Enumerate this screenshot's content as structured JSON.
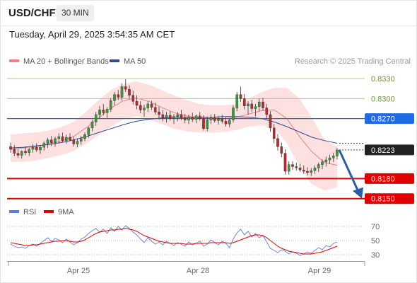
{
  "header": {
    "symbol": "USD/CHF",
    "timeframe": "30 MIN",
    "timestamp": "Tuesday, April 29, 2025 3:54:35 AM CET"
  },
  "legend": {
    "ma20_label": "MA 20 + Bollinger Bands",
    "ma20_color": "#f08080",
    "ma50_label": "MA 50",
    "ma50_color": "#2c4c8c",
    "credit": "Research © 2025 Trading Central"
  },
  "rsi_legend": {
    "rsi_label": "RSI",
    "rsi_color": "#5a7fd8",
    "ma9_label": "9MA",
    "ma9_color": "#e00000"
  },
  "colors": {
    "bull": "#3a9a3a",
    "bear": "#c0272d",
    "resistance": "#a8cc80",
    "pivot": "#1e6be6",
    "support": "#e00000",
    "current": "#222222",
    "arrow": "#2a5ca8",
    "band_fill": "#fde0e0"
  },
  "chart_data": [
    {
      "type": "candlestick",
      "title": "USD/CHF",
      "timeframe": "30 MIN",
      "x_ticks": [
        "Apr 25",
        "Apr 28",
        "Apr 29"
      ],
      "ylim": [
        0.8138,
        0.8345
      ],
      "candles": [
        [
          0.8228,
          0.8234,
          0.8219,
          0.8224
        ],
        [
          0.8224,
          0.823,
          0.8214,
          0.8218
        ],
        [
          0.8218,
          0.8224,
          0.8211,
          0.8215
        ],
        [
          0.8215,
          0.8222,
          0.821,
          0.8221
        ],
        [
          0.8221,
          0.8228,
          0.8215,
          0.8219
        ],
        [
          0.8219,
          0.8226,
          0.8214,
          0.8224
        ],
        [
          0.8224,
          0.8232,
          0.8219,
          0.8227
        ],
        [
          0.8227,
          0.8233,
          0.822,
          0.8223
        ],
        [
          0.8223,
          0.823,
          0.8217,
          0.8227
        ],
        [
          0.8227,
          0.8236,
          0.8222,
          0.8233
        ],
        [
          0.8233,
          0.8241,
          0.8226,
          0.8238
        ],
        [
          0.8238,
          0.8244,
          0.8229,
          0.8234
        ],
        [
          0.8234,
          0.8243,
          0.8228,
          0.824
        ],
        [
          0.824,
          0.8248,
          0.8233,
          0.8243
        ],
        [
          0.8243,
          0.8249,
          0.8234,
          0.8237
        ],
        [
          0.8237,
          0.8246,
          0.8232,
          0.8242
        ],
        [
          0.8242,
          0.8248,
          0.8236,
          0.8238
        ],
        [
          0.8238,
          0.8243,
          0.8228,
          0.8232
        ],
        [
          0.8232,
          0.824,
          0.8227,
          0.8236
        ],
        [
          0.8236,
          0.8244,
          0.8231,
          0.824
        ],
        [
          0.824,
          0.8249,
          0.8236,
          0.8246
        ],
        [
          0.8246,
          0.8258,
          0.8241,
          0.8256
        ],
        [
          0.8256,
          0.8268,
          0.8251,
          0.8265
        ],
        [
          0.8265,
          0.828,
          0.8259,
          0.8276
        ],
        [
          0.8276,
          0.8289,
          0.827,
          0.8283
        ],
        [
          0.8283,
          0.8292,
          0.8275,
          0.8279
        ],
        [
          0.8279,
          0.8287,
          0.8271,
          0.8284
        ],
        [
          0.8284,
          0.8301,
          0.828,
          0.8297
        ],
        [
          0.8297,
          0.831,
          0.829,
          0.8306
        ],
        [
          0.8306,
          0.8313,
          0.8298,
          0.8302
        ],
        [
          0.8302,
          0.8323,
          0.8297,
          0.8318
        ],
        [
          0.8318,
          0.8329,
          0.831,
          0.8314
        ],
        [
          0.8314,
          0.832,
          0.83,
          0.8305
        ],
        [
          0.8305,
          0.8312,
          0.8291,
          0.8296
        ],
        [
          0.8296,
          0.8305,
          0.8284,
          0.829
        ],
        [
          0.829,
          0.8296,
          0.8278,
          0.8283
        ],
        [
          0.8283,
          0.8291,
          0.8273,
          0.8286
        ],
        [
          0.8286,
          0.8296,
          0.828,
          0.8292
        ],
        [
          0.8292,
          0.8297,
          0.8283,
          0.8287
        ],
        [
          0.8287,
          0.8294,
          0.8276,
          0.828
        ],
        [
          0.828,
          0.8288,
          0.8269,
          0.8276
        ],
        [
          0.8276,
          0.8283,
          0.8266,
          0.8271
        ],
        [
          0.8271,
          0.828,
          0.8264,
          0.8275
        ],
        [
          0.8275,
          0.8281,
          0.8267,
          0.827
        ],
        [
          0.827,
          0.8277,
          0.8262,
          0.8273
        ],
        [
          0.8273,
          0.828,
          0.8266,
          0.8276
        ],
        [
          0.8276,
          0.8283,
          0.8268,
          0.8271
        ],
        [
          0.8271,
          0.8277,
          0.8263,
          0.8268
        ],
        [
          0.8268,
          0.8276,
          0.8262,
          0.8272
        ],
        [
          0.8272,
          0.8279,
          0.8265,
          0.8269
        ],
        [
          0.8269,
          0.8276,
          0.8263,
          0.8274
        ],
        [
          0.8274,
          0.828,
          0.8267,
          0.827
        ],
        [
          0.827,
          0.8275,
          0.8252,
          0.8255
        ],
        [
          0.8255,
          0.8273,
          0.8251,
          0.8268
        ],
        [
          0.8268,
          0.8276,
          0.8262,
          0.8271
        ],
        [
          0.8271,
          0.8277,
          0.8264,
          0.8267
        ],
        [
          0.8267,
          0.8274,
          0.8261,
          0.827
        ],
        [
          0.827,
          0.8276,
          0.8263,
          0.8266
        ],
        [
          0.8266,
          0.8272,
          0.8258,
          0.8262
        ],
        [
          0.8262,
          0.827,
          0.8257,
          0.8268
        ],
        [
          0.8268,
          0.829,
          0.8264,
          0.8286
        ],
        [
          0.8286,
          0.831,
          0.8281,
          0.8306
        ],
        [
          0.8306,
          0.8318,
          0.8295,
          0.83
        ],
        [
          0.83,
          0.8307,
          0.8284,
          0.8289
        ],
        [
          0.8289,
          0.8296,
          0.8276,
          0.8292
        ],
        [
          0.8292,
          0.8298,
          0.828,
          0.8285
        ],
        [
          0.8285,
          0.8292,
          0.8273,
          0.8288
        ],
        [
          0.8288,
          0.83,
          0.8281,
          0.8295
        ],
        [
          0.8295,
          0.8301,
          0.8282,
          0.8286
        ],
        [
          0.8286,
          0.8292,
          0.827,
          0.8276
        ],
        [
          0.8276,
          0.8281,
          0.825,
          0.8256
        ],
        [
          0.8256,
          0.8262,
          0.8233,
          0.824
        ],
        [
          0.824,
          0.8247,
          0.8222,
          0.8228
        ],
        [
          0.8228,
          0.8234,
          0.8212,
          0.8218
        ],
        [
          0.8218,
          0.8224,
          0.8186,
          0.8191
        ],
        [
          0.8191,
          0.8206,
          0.8186,
          0.8201
        ],
        [
          0.8201,
          0.8206,
          0.8193,
          0.8198
        ],
        [
          0.8198,
          0.8204,
          0.8192,
          0.8196
        ],
        [
          0.8196,
          0.8202,
          0.819,
          0.8193
        ],
        [
          0.8193,
          0.82,
          0.8187,
          0.8191
        ],
        [
          0.8191,
          0.8197,
          0.8185,
          0.8189
        ],
        [
          0.8189,
          0.8196,
          0.8184,
          0.8192
        ],
        [
          0.8192,
          0.82,
          0.8187,
          0.8196
        ],
        [
          0.8196,
          0.8204,
          0.819,
          0.8201
        ],
        [
          0.8201,
          0.8209,
          0.8194,
          0.8205
        ],
        [
          0.8205,
          0.8213,
          0.8198,
          0.8208
        ],
        [
          0.8208,
          0.8216,
          0.8202,
          0.8211
        ],
        [
          0.8211,
          0.8219,
          0.8205,
          0.8214
        ],
        [
          0.8214,
          0.8226,
          0.8209,
          0.8223
        ]
      ],
      "ma50": [
        0.8226,
        0.8227,
        0.8229,
        0.8231,
        0.8234,
        0.8238,
        0.8243,
        0.8249,
        0.8255,
        0.8261,
        0.8266,
        0.8269,
        0.8271,
        0.8272,
        0.8272,
        0.8272,
        0.8272,
        0.8273,
        0.8273,
        0.8272,
        0.827,
        0.8265,
        0.8258,
        0.825,
        0.8242,
        0.8237,
        0.8233
      ],
      "ma20": [
        0.8224,
        0.8226,
        0.8228,
        0.8232,
        0.8236,
        0.8243,
        0.8256,
        0.8271,
        0.8286,
        0.8297,
        0.8301,
        0.8296,
        0.8287,
        0.8279,
        0.8274,
        0.8271,
        0.827,
        0.827,
        0.8272,
        0.8277,
        0.8282,
        0.8283,
        0.827,
        0.8243,
        0.822,
        0.8204,
        0.82
      ],
      "bb_upper": [
        0.8246,
        0.8248,
        0.8249,
        0.8252,
        0.8257,
        0.8265,
        0.828,
        0.8298,
        0.8313,
        0.8322,
        0.8326,
        0.8321,
        0.8313,
        0.8305,
        0.8298,
        0.8292,
        0.829,
        0.829,
        0.8292,
        0.83,
        0.831,
        0.8316,
        0.8316,
        0.83,
        0.8271,
        0.8238,
        0.8228
      ],
      "bb_lower": [
        0.8205,
        0.8205,
        0.8207,
        0.8211,
        0.8215,
        0.8221,
        0.8232,
        0.8245,
        0.8258,
        0.8269,
        0.8273,
        0.8269,
        0.8262,
        0.8255,
        0.8251,
        0.8249,
        0.8249,
        0.825,
        0.8253,
        0.8258,
        0.826,
        0.8256,
        0.8233,
        0.8198,
        0.8171,
        0.8162,
        0.8167
      ],
      "resistance_levels": [
        0.833,
        0.83
      ],
      "pivot_level": 0.827,
      "current_price": 0.8223,
      "support_levels": [
        0.818,
        0.815
      ],
      "labels": [
        "0.8330",
        "0.8300",
        "0.8270",
        "0.8223",
        "0.8180",
        "0.8150"
      ],
      "forecast": {
        "from": 0.8223,
        "to": 0.815,
        "direction": "down"
      }
    },
    {
      "type": "line",
      "title": "RSI",
      "ylim": [
        22,
        78
      ],
      "y_ticks": [
        "70",
        "50",
        "30"
      ],
      "rsi": [
        45,
        42,
        40,
        41,
        39,
        43,
        45,
        42,
        46,
        50,
        54,
        49,
        53,
        51,
        47,
        52,
        48,
        44,
        47,
        52,
        55,
        60,
        64,
        67,
        62,
        66,
        60,
        68,
        63,
        70,
        65,
        71,
        67,
        62,
        58,
        52,
        47,
        54,
        49,
        45,
        48,
        44,
        49,
        46,
        43,
        47,
        45,
        42,
        48,
        44,
        46,
        49,
        42,
        45,
        51,
        47,
        44,
        49,
        46,
        40,
        52,
        61,
        66,
        58,
        63,
        55,
        60,
        54,
        57,
        48,
        39,
        36,
        33,
        37,
        35,
        31,
        34,
        32,
        29,
        31,
        34,
        32,
        36,
        40,
        37,
        43,
        41,
        46,
        48
      ],
      "ma9": [
        47,
        46,
        45,
        44,
        43,
        43,
        44,
        44,
        45,
        46,
        47,
        48,
        49,
        49,
        50,
        50,
        49,
        48,
        48,
        49,
        51,
        54,
        57,
        60,
        62,
        63,
        64,
        65,
        65,
        66,
        66,
        67,
        66,
        65,
        63,
        60,
        57,
        55,
        53,
        51,
        49,
        48,
        47,
        46,
        46,
        46,
        46,
        45,
        45,
        45,
        46,
        46,
        46,
        46,
        47,
        47,
        47,
        47,
        47,
        46,
        47,
        49,
        51,
        53,
        55,
        57,
        58,
        58,
        57,
        54,
        50,
        46,
        42,
        39,
        37,
        35,
        34,
        33,
        32,
        31,
        31,
        31,
        32,
        33,
        34,
        36,
        38,
        40,
        42
      ]
    }
  ]
}
